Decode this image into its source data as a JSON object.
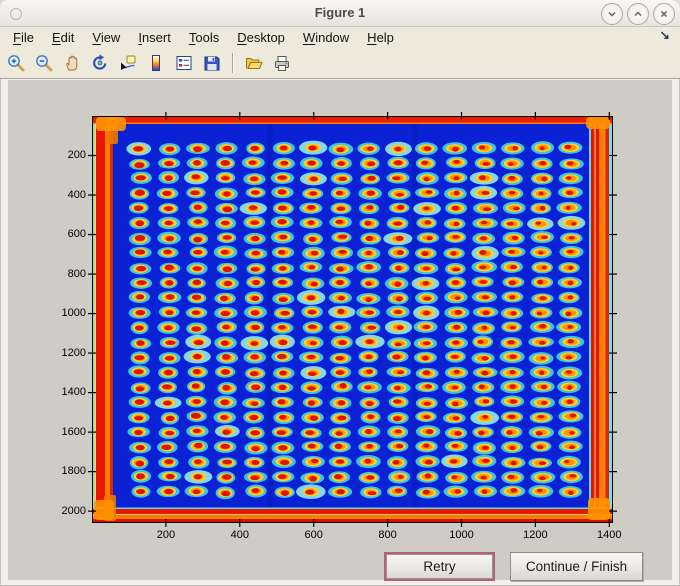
{
  "window": {
    "title": "Figure 1",
    "controls": {
      "minimize": "chevron-down",
      "maximize": "chevron-up",
      "close": "x"
    }
  },
  "menu": {
    "items": [
      {
        "label": "File"
      },
      {
        "label": "Edit"
      },
      {
        "label": "View"
      },
      {
        "label": "Insert"
      },
      {
        "label": "Tools"
      },
      {
        "label": "Desktop"
      },
      {
        "label": "Window"
      },
      {
        "label": "Help"
      }
    ],
    "dock_glyph": "↘"
  },
  "toolbar": {
    "icons": [
      "zoom-in",
      "zoom-out",
      "pan-hand",
      "rotate-3d",
      "data-cursor",
      "insert-colorbar",
      "insert-legend",
      "save-figure",
      "open-file",
      "print-figure"
    ]
  },
  "figure": {
    "canvas_color": "#cfccc6",
    "ui_beige": "#edeadb"
  },
  "buttons": {
    "retry": "Retry",
    "continue": "Continue / Finish",
    "retry_highlight_color": "#b2607c"
  },
  "chart_data": {
    "type": "heatmap",
    "title": "",
    "xlabel": "",
    "ylabel": "",
    "xlim": [
      0,
      1410
    ],
    "ylim": [
      0,
      2060
    ],
    "y_axis_direction": "reverse",
    "x_ticks": [
      200,
      400,
      600,
      800,
      1000,
      1200,
      1400
    ],
    "y_ticks": [
      200,
      400,
      600,
      800,
      1000,
      1200,
      1400,
      1600,
      1800,
      2000
    ],
    "grid": false,
    "colormap": "jet",
    "description": "Pseudocolor (jet) scan of a plate/microarray: deep blue field with a 16 x 24 grid of spots, each spot having a red center, yellow-orange ring and cyan halo; saturated red-orange bands with cyan slivers run along all four plate edges, with brighter orange blobs at the corners.",
    "spot_grid": {
      "cols": 16,
      "rows": 24,
      "first_col_x": 130,
      "col_pitch_x": 77.6,
      "first_row_y": 164,
      "row_pitch_y": 75.6
    },
    "colors": {
      "background": "#0a22d4",
      "halo_cyan": "#3ed2ee",
      "halo_pale": "#8ce8f6",
      "ring_yellow": "#ffd021",
      "ring_orange": "#ff8a00",
      "center_red": "#dd1500",
      "edge_red": "#e81600",
      "edge_orange": "#ff7d00",
      "edge_dark_red": "#d82800",
      "edge_cyan": "#6fe2f8",
      "edge_yellow": "#ffd640",
      "corner_orange": "#ff9400",
      "axis_color": "#000000"
    }
  }
}
